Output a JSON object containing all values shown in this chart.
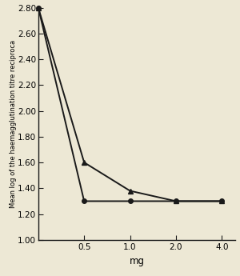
{
  "x_positions": [
    0,
    1,
    2,
    3,
    4
  ],
  "x_tick_positions": [
    1,
    2,
    3,
    4
  ],
  "x_labels": [
    "0.5",
    "1.0",
    "2.0",
    "4.0"
  ],
  "xlabel": "mg",
  "ylabel": "Mean log of the haemagglutination titre reciproca",
  "ylim": [
    1.0,
    2.8
  ],
  "yticks": [
    1.0,
    1.2,
    1.4,
    1.6,
    1.8,
    2.0,
    2.2,
    2.4,
    2.6,
    2.8
  ],
  "ytick_labels": [
    "1.00",
    "1.20",
    "1.40",
    "1.60",
    "1.80",
    "2.00",
    "2.20",
    "2.40",
    "2.60",
    "2.80"
  ],
  "line_circle": {
    "x": [
      0,
      1,
      2,
      3,
      4
    ],
    "y": [
      2.8,
      1.3,
      1.3,
      1.3,
      1.3
    ],
    "marker": "o",
    "color": "#1a1a1a",
    "linewidth": 1.4,
    "markersize": 4
  },
  "line_triangle": {
    "x": [
      0,
      1,
      2,
      3,
      4
    ],
    "y": [
      2.8,
      1.6,
      1.38,
      1.3,
      1.3
    ],
    "marker": "^",
    "color": "#1a1a1a",
    "linewidth": 1.4,
    "markersize": 5
  },
  "background_color": "#ede8d5",
  "plot_bg_color": "#ede8d5",
  "label_fontsize": 7.5,
  "tick_fontsize": 7.5
}
